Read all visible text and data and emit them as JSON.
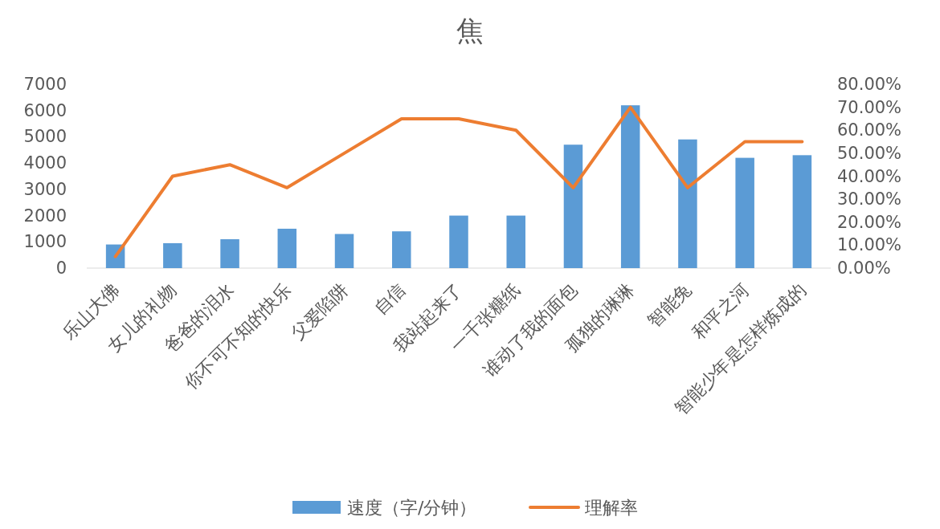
{
  "chart_data": {
    "type": "bar",
    "title": "焦",
    "categories": [
      "乐山大佛",
      "女儿的礼物",
      "爸爸的泪水",
      "你不可不知的快乐",
      "父爱陷阱",
      "自信",
      "我站起来了",
      "一千张糖纸",
      "谁动了我的面包",
      "孤独的琳琳",
      "智能兔",
      "和平之河",
      "智能少年是怎样炼成的"
    ],
    "series": [
      {
        "name": "速度（字/分钟）",
        "color": "#5b9bd5",
        "values": [
          900,
          950,
          1100,
          1500,
          1300,
          1400,
          2000,
          2000,
          4700,
          6200,
          4900,
          4200,
          4300
        ]
      },
      {
        "name": "理解率",
        "type": "line",
        "axis": "y2",
        "color": "#ed7d31",
        "values": [
          5,
          40,
          45,
          35,
          50,
          65,
          65,
          60,
          35,
          70,
          35,
          55,
          55
        ]
      }
    ],
    "ylim": [
      0,
      7000
    ],
    "yticks": [
      0,
      1000,
      2000,
      3000,
      4000,
      5000,
      6000,
      7000
    ],
    "y2lim": [
      0,
      80
    ],
    "y2ticks": [
      {
        "value": 0,
        "label": "0.00%"
      },
      {
        "value": 10,
        "label": "10.00%"
      },
      {
        "value": 20,
        "label": "20.00%"
      },
      {
        "value": 30,
        "label": "30.00%"
      },
      {
        "value": 40,
        "label": "40.00%"
      },
      {
        "value": 50,
        "label": "50.00%"
      },
      {
        "value": 60,
        "label": "60.00%"
      },
      {
        "value": 70,
        "label": "70.00%"
      },
      {
        "value": 80,
        "label": "80.00%"
      }
    ],
    "grid": false,
    "legend": "bottom",
    "marker": "none"
  }
}
